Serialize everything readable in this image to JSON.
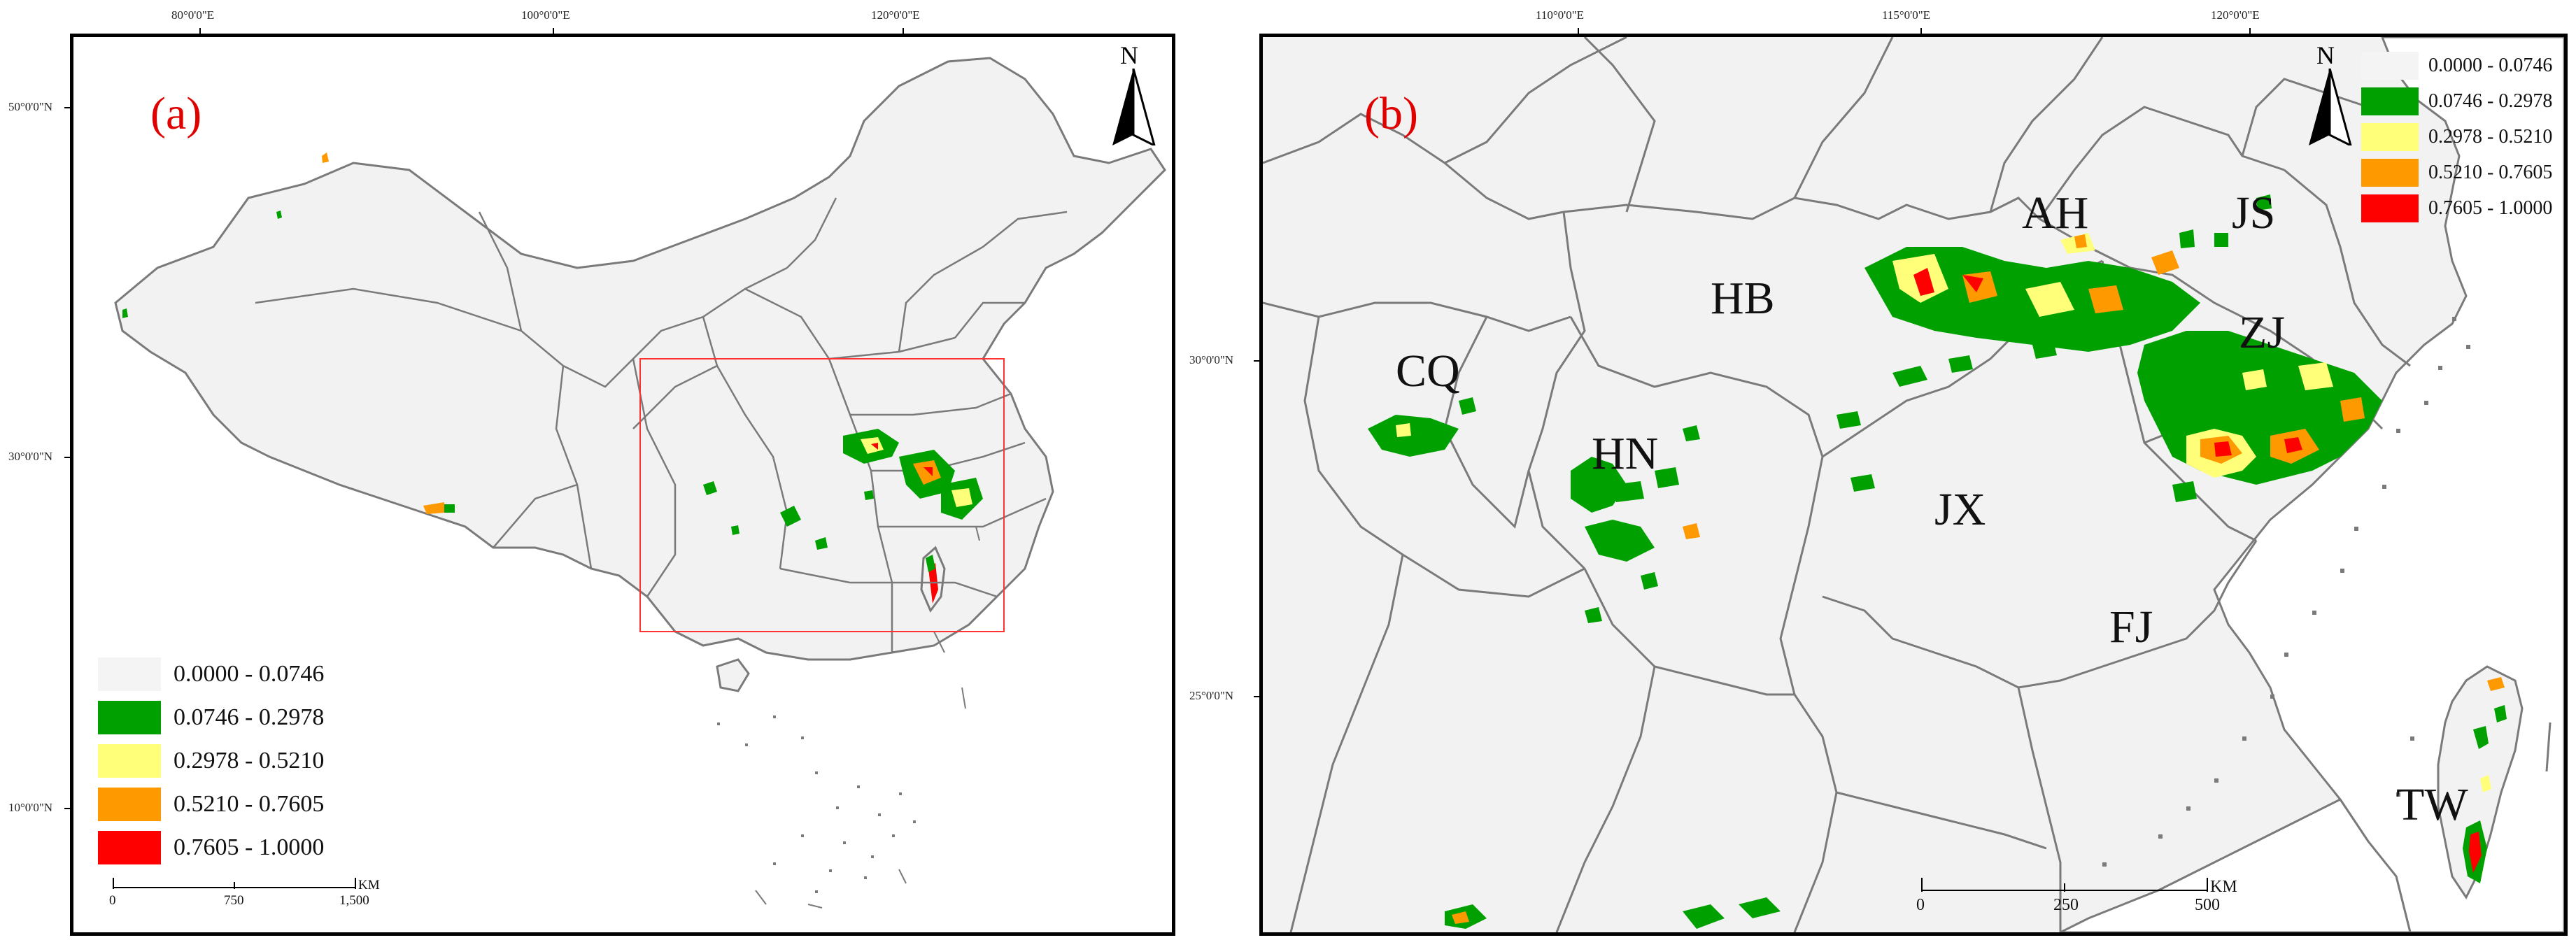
{
  "panel_a": {
    "label": "(a)",
    "top_ticks": [
      "80°0'0\"E",
      "100°0'0\"E",
      "120°0'0\"E"
    ],
    "left_ticks": [
      "50°0'0\"N",
      "30°0'0\"N",
      "10°0'0\"N"
    ],
    "north_letter": "N",
    "legend": [
      {
        "range": "0.0000 - 0.0746",
        "color": "#f4f4f4"
      },
      {
        "range": "0.0746 - 0.2978",
        "color": "#00a000"
      },
      {
        "range": "0.2978 - 0.5210",
        "color": "#ffff7a"
      },
      {
        "range": "0.5210 - 0.7605",
        "color": "#ff9900"
      },
      {
        "range": "0.7605 - 1.0000",
        "color": "#ff0000"
      }
    ],
    "scalebar": {
      "labels": [
        "0",
        "750",
        "1,500"
      ],
      "unit": "KM"
    },
    "inset_box_color": "#ff0000"
  },
  "panel_b": {
    "label": "(b)",
    "top_ticks": [
      "110°0'0\"E",
      "115°0'0\"E",
      "120°0'0\"E"
    ],
    "left_ticks": [
      "30°0'0\"N",
      "25°0'0\"N"
    ],
    "north_letter": "N",
    "provinces": [
      "AH",
      "JS",
      "HB",
      "ZJ",
      "CQ",
      "HN",
      "JX",
      "FJ",
      "TW"
    ],
    "legend": [
      {
        "range": "0.0000 - 0.0746",
        "color": "#f4f4f4"
      },
      {
        "range": "0.0746 - 0.2978",
        "color": "#00a000"
      },
      {
        "range": "0.2978 - 0.5210",
        "color": "#ffff7a"
      },
      {
        "range": "0.5210 - 0.7605",
        "color": "#ff9900"
      },
      {
        "range": "0.7605 - 1.0000",
        "color": "#ff0000"
      }
    ],
    "scalebar": {
      "labels": [
        "0",
        "250",
        "500"
      ],
      "unit": "KM"
    }
  },
  "colors": {
    "land": "#f2f2f2",
    "border": "#7a7a7a",
    "frame": "#000000"
  }
}
